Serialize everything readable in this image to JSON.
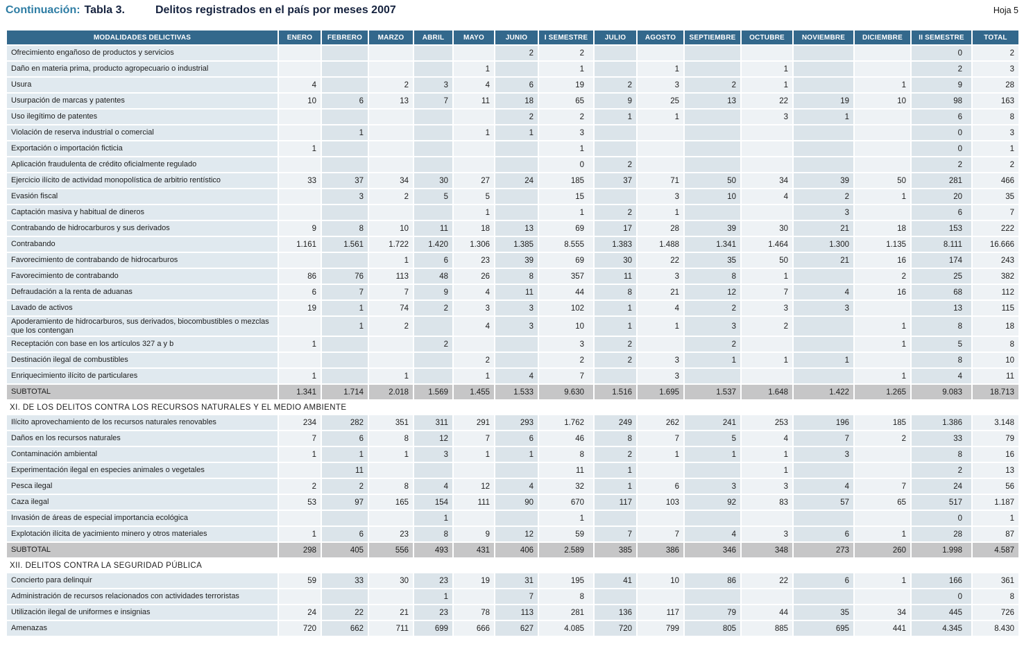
{
  "page": {
    "continuation_label": "Continuación:",
    "table_label": "Tabla 3.",
    "title": "Delitos registrados en el país por meses 2007",
    "sheet_label": "Hoja 5"
  },
  "colors": {
    "header_bg": "#33688c",
    "label_bg": "#e0e9ef",
    "column_light": "#eef2f5",
    "column_dark": "#dbe4ea",
    "subtotal_bg": "#c6c6c7",
    "accent_blue": "#2e7da4",
    "title_navy": "#16233f"
  },
  "table": {
    "columns": [
      "MODALIDADES DELICTIVAS",
      "ENERO",
      "FEBRERO",
      "MARZO",
      "ABRIL",
      "MAYO",
      "JUNIO",
      "I SEMESTRE",
      "JULIO",
      "AGOSTO",
      "SEPTIEMBRE",
      "OCTUBRE",
      "NOVIEMBRE",
      "DICIEMBRE",
      "II SEMESTRE",
      "TOTAL"
    ],
    "sections": [
      {
        "header": null,
        "rows": [
          {
            "label": "Ofrecimiento engañoso de productos y servicios",
            "subtotal": false,
            "values": [
              "",
              "",
              "",
              "",
              "",
              "2",
              "2",
              "",
              "",
              "",
              "",
              "",
              "",
              "0",
              "2"
            ]
          },
          {
            "label": "Daño en materia prima, producto agropecuario o industrial",
            "subtotal": false,
            "values": [
              "",
              "",
              "",
              "",
              "1",
              "",
              "1",
              "",
              "1",
              "",
              "1",
              "",
              "",
              "2",
              "3"
            ]
          },
          {
            "label": "Usura",
            "subtotal": false,
            "values": [
              "4",
              "",
              "2",
              "3",
              "4",
              "6",
              "19",
              "2",
              "3",
              "2",
              "1",
              "",
              "1",
              "9",
              "28"
            ]
          },
          {
            "label": "Usurpación de marcas y patentes",
            "subtotal": false,
            "values": [
              "10",
              "6",
              "13",
              "7",
              "11",
              "18",
              "65",
              "9",
              "25",
              "13",
              "22",
              "19",
              "10",
              "98",
              "163"
            ]
          },
          {
            "label": "Uso ilegítimo de patentes",
            "subtotal": false,
            "values": [
              "",
              "",
              "",
              "",
              "",
              "2",
              "2",
              "1",
              "1",
              "",
              "3",
              "1",
              "",
              "6",
              "8"
            ]
          },
          {
            "label": "Violación de reserva industrial o comercial",
            "subtotal": false,
            "values": [
              "",
              "1",
              "",
              "",
              "1",
              "1",
              "3",
              "",
              "",
              "",
              "",
              "",
              "",
              "0",
              "3"
            ]
          },
          {
            "label": "Exportación o importación ficticia",
            "subtotal": false,
            "values": [
              "1",
              "",
              "",
              "",
              "",
              "",
              "1",
              "",
              "",
              "",
              "",
              "",
              "",
              "0",
              "1"
            ]
          },
          {
            "label": "Aplicación fraudulenta de crédito oficialmente regulado",
            "subtotal": false,
            "values": [
              "",
              "",
              "",
              "",
              "",
              "",
              "0",
              "2",
              "",
              "",
              "",
              "",
              "",
              "2",
              "2"
            ]
          },
          {
            "label": "Ejercicio ilícito de actividad monopolística de arbitrio rentístico",
            "subtotal": false,
            "values": [
              "33",
              "37",
              "34",
              "30",
              "27",
              "24",
              "185",
              "37",
              "71",
              "50",
              "34",
              "39",
              "50",
              "281",
              "466"
            ]
          },
          {
            "label": "Evasión fiscal",
            "subtotal": false,
            "values": [
              "",
              "3",
              "2",
              "5",
              "5",
              "",
              "15",
              "",
              "3",
              "10",
              "4",
              "2",
              "1",
              "20",
              "35"
            ]
          },
          {
            "label": "Captación masiva y habitual de dineros",
            "subtotal": false,
            "values": [
              "",
              "",
              "",
              "",
              "1",
              "",
              "1",
              "2",
              "1",
              "",
              "",
              "3",
              "",
              "6",
              "7"
            ]
          },
          {
            "label": "Contrabando de hidrocarburos y sus derivados",
            "subtotal": false,
            "values": [
              "9",
              "8",
              "10",
              "11",
              "18",
              "13",
              "69",
              "17",
              "28",
              "39",
              "30",
              "21",
              "18",
              "153",
              "222"
            ]
          },
          {
            "label": "Contrabando",
            "subtotal": false,
            "values": [
              "1.161",
              "1.561",
              "1.722",
              "1.420",
              "1.306",
              "1.385",
              "8.555",
              "1.383",
              "1.488",
              "1.341",
              "1.464",
              "1.300",
              "1.135",
              "8.111",
              "16.666"
            ]
          },
          {
            "label": "Favorecimiento de contrabando de hidrocarburos",
            "subtotal": false,
            "values": [
              "",
              "",
              "1",
              "6",
              "23",
              "39",
              "69",
              "30",
              "22",
              "35",
              "50",
              "21",
              "16",
              "174",
              "243"
            ]
          },
          {
            "label": "Favorecimiento de contrabando",
            "subtotal": false,
            "values": [
              "86",
              "76",
              "113",
              "48",
              "26",
              "8",
              "357",
              "11",
              "3",
              "8",
              "1",
              "",
              "2",
              "25",
              "382"
            ]
          },
          {
            "label": "Defraudación a la renta de aduanas",
            "subtotal": false,
            "values": [
              "6",
              "7",
              "7",
              "9",
              "4",
              "11",
              "44",
              "8",
              "21",
              "12",
              "7",
              "4",
              "16",
              "68",
              "112"
            ]
          },
          {
            "label": "Lavado de activos",
            "subtotal": false,
            "values": [
              "19",
              "1",
              "74",
              "2",
              "3",
              "3",
              "102",
              "1",
              "4",
              "2",
              "3",
              "3",
              "",
              "13",
              "115"
            ]
          },
          {
            "label": "Apoderamiento de hidrocarburos, sus derivados, biocombustibles o mezclas que los contengan",
            "subtotal": false,
            "values": [
              "",
              "1",
              "2",
              "",
              "4",
              "3",
              "10",
              "1",
              "1",
              "3",
              "2",
              "",
              "1",
              "8",
              "18"
            ]
          },
          {
            "label": "Receptación con base en los artículos 327 a y b",
            "subtotal": false,
            "values": [
              "1",
              "",
              "",
              "2",
              "",
              "",
              "3",
              "2",
              "",
              "2",
              "",
              "",
              "1",
              "5",
              "8"
            ]
          },
          {
            "label": "Destinación ilegal de combustibles",
            "subtotal": false,
            "values": [
              "",
              "",
              "",
              "",
              "2",
              "",
              "2",
              "2",
              "3",
              "1",
              "1",
              "1",
              "",
              "8",
              "10"
            ]
          },
          {
            "label": "Enriquecimiento ilícito de particulares",
            "subtotal": false,
            "values": [
              "1",
              "",
              "1",
              "",
              "1",
              "4",
              "7",
              "",
              "3",
              "",
              "",
              "",
              "1",
              "4",
              "11"
            ]
          },
          {
            "label": "SUBTOTAL",
            "subtotal": true,
            "values": [
              "1.341",
              "1.714",
              "2.018",
              "1.569",
              "1.455",
              "1.533",
              "9.630",
              "1.516",
              "1.695",
              "1.537",
              "1.648",
              "1.422",
              "1.265",
              "9.083",
              "18.713"
            ]
          }
        ]
      },
      {
        "header": "XI. DE LOS DELITOS CONTRA LOS RECURSOS NATURALES Y EL MEDIO AMBIENTE",
        "rows": [
          {
            "label": "Ilícito aprovechamiento de los recursos naturales renovables",
            "subtotal": false,
            "values": [
              "234",
              "282",
              "351",
              "311",
              "291",
              "293",
              "1.762",
              "249",
              "262",
              "241",
              "253",
              "196",
              "185",
              "1.386",
              "3.148"
            ]
          },
          {
            "label": "Daños en los recursos naturales",
            "subtotal": false,
            "values": [
              "7",
              "6",
              "8",
              "12",
              "7",
              "6",
              "46",
              "8",
              "7",
              "5",
              "4",
              "7",
              "2",
              "33",
              "79"
            ]
          },
          {
            "label": "Contaminación ambiental",
            "subtotal": false,
            "values": [
              "1",
              "1",
              "1",
              "3",
              "1",
              "1",
              "8",
              "2",
              "1",
              "1",
              "1",
              "3",
              "",
              "8",
              "16"
            ]
          },
          {
            "label": "Experimentación ilegal en especies animales o vegetales",
            "subtotal": false,
            "values": [
              "",
              "11",
              "",
              "",
              "",
              "",
              "11",
              "1",
              "",
              "",
              "1",
              "",
              "",
              "2",
              "13"
            ]
          },
          {
            "label": "Pesca ilegal",
            "subtotal": false,
            "values": [
              "2",
              "2",
              "8",
              "4",
              "12",
              "4",
              "32",
              "1",
              "6",
              "3",
              "3",
              "4",
              "7",
              "24",
              "56"
            ]
          },
          {
            "label": "Caza ilegal",
            "subtotal": false,
            "values": [
              "53",
              "97",
              "165",
              "154",
              "111",
              "90",
              "670",
              "117",
              "103",
              "92",
              "83",
              "57",
              "65",
              "517",
              "1.187"
            ]
          },
          {
            "label": "Invasión de áreas de especial importancia ecológica",
            "subtotal": false,
            "values": [
              "",
              "",
              "",
              "1",
              "",
              "",
              "1",
              "",
              "",
              "",
              "",
              "",
              "",
              "0",
              "1"
            ]
          },
          {
            "label": "Explotación ilícita de yacimiento minero y otros materiales",
            "subtotal": false,
            "values": [
              "1",
              "6",
              "23",
              "8",
              "9",
              "12",
              "59",
              "7",
              "7",
              "4",
              "3",
              "6",
              "1",
              "28",
              "87"
            ]
          },
          {
            "label": "SUBTOTAL",
            "subtotal": true,
            "values": [
              "298",
              "405",
              "556",
              "493",
              "431",
              "406",
              "2.589",
              "385",
              "386",
              "346",
              "348",
              "273",
              "260",
              "1.998",
              "4.587"
            ]
          }
        ]
      },
      {
        "header": "XII. DELITOS CONTRA LA SEGURIDAD PÚBLICA",
        "rows": [
          {
            "label": "Concierto para delinquir",
            "subtotal": false,
            "values": [
              "59",
              "33",
              "30",
              "23",
              "19",
              "31",
              "195",
              "41",
              "10",
              "86",
              "22",
              "6",
              "1",
              "166",
              "361"
            ]
          },
          {
            "label": "Administración de recursos relacionados con actividades terroristas",
            "subtotal": false,
            "values": [
              "",
              "",
              "",
              "1",
              "",
              "7",
              "8",
              "",
              "",
              "",
              "",
              "",
              "",
              "0",
              "8"
            ]
          },
          {
            "label": "Utilización ilegal de uniformes e insignias",
            "subtotal": false,
            "values": [
              "24",
              "22",
              "21",
              "23",
              "78",
              "113",
              "281",
              "136",
              "117",
              "79",
              "44",
              "35",
              "34",
              "445",
              "726"
            ]
          },
          {
            "label": "Amenazas",
            "subtotal": false,
            "values": [
              "720",
              "662",
              "711",
              "699",
              "666",
              "627",
              "4.085",
              "720",
              "799",
              "805",
              "885",
              "695",
              "441",
              "4.345",
              "8.430"
            ]
          }
        ]
      }
    ]
  }
}
